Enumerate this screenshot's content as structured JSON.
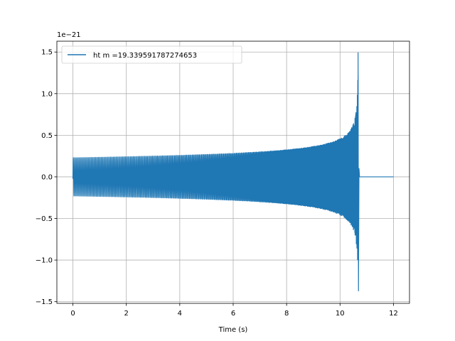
{
  "chart_data": {
    "type": "line",
    "title": "",
    "xlabel": "Time (s)",
    "ylabel": "",
    "y_offset_label": "1e−21",
    "xlim": [
      -0.6,
      12.6
    ],
    "ylim": [
      -1.52,
      1.63
    ],
    "x_ticks": [
      0,
      2,
      4,
      6,
      8,
      10,
      12
    ],
    "x_tick_labels": [
      "0",
      "2",
      "4",
      "6",
      "8",
      "10",
      "12"
    ],
    "y_ticks": [
      -1.5,
      -1.0,
      -0.5,
      0.0,
      0.5,
      1.0,
      1.5
    ],
    "y_tick_labels": [
      "−1.5",
      "−1.0",
      "−0.5",
      "0.0",
      "0.5",
      "1.0",
      "1.5"
    ],
    "grid": true,
    "legend_placement": "upper-left",
    "series": [
      {
        "name": "ht m =19.339591787274653",
        "color": "#1f77b4",
        "signal": {
          "form": "chirp",
          "t_start": 0.0,
          "t_merger": 10.68,
          "t_end": 12.0,
          "initial_amplitude": 0.23,
          "peak_positive": 1.49,
          "peak_negative": -1.37,
          "post_merger_value": 0.0
        }
      }
    ]
  }
}
